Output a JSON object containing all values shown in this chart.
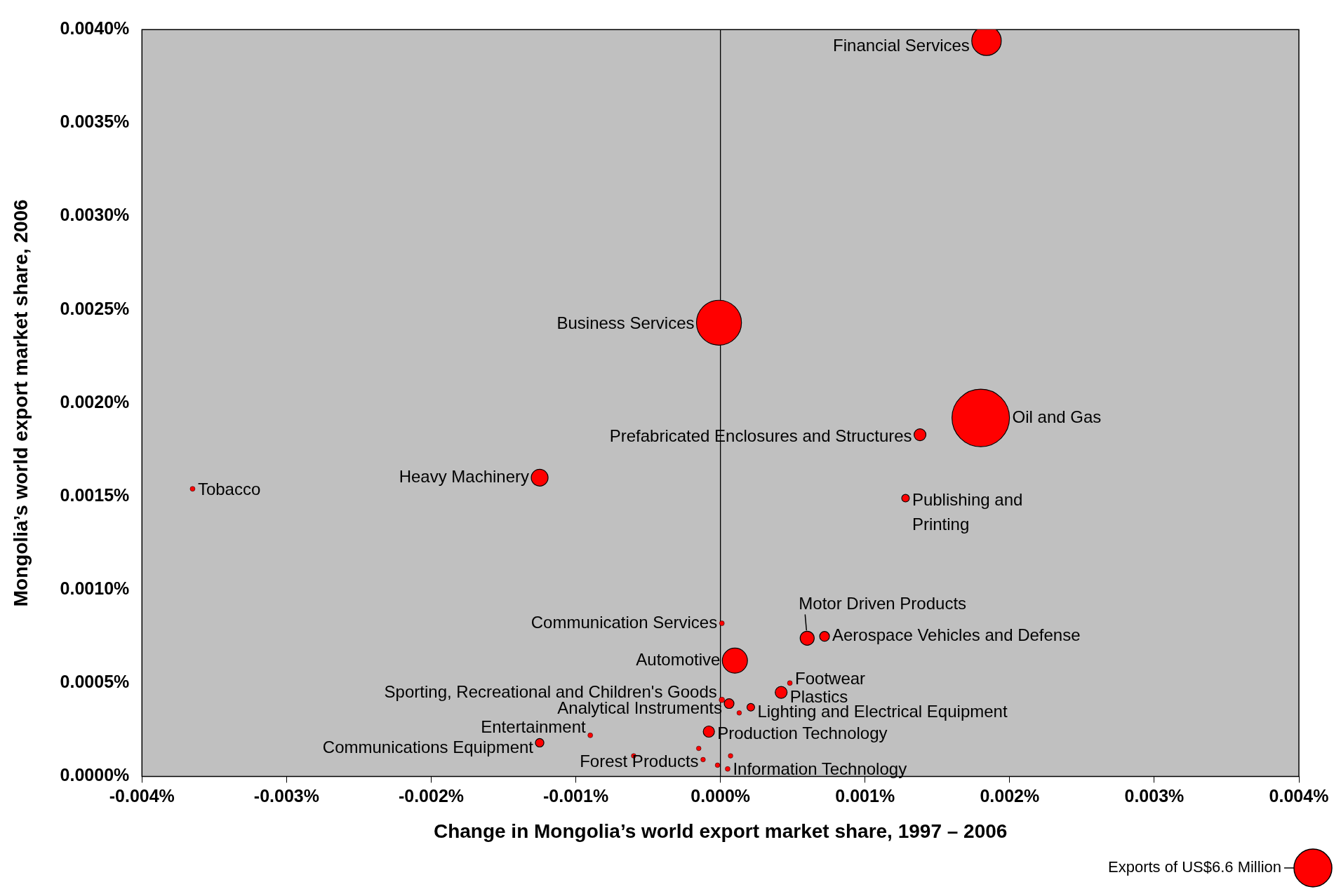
{
  "chart_data": {
    "type": "bubble",
    "xlabel": "Change in Mongolia’s world export market share, 1997 – 2006",
    "ylabel": "Mongolia’s world export market share, 2006",
    "x": [
      0.00184,
      -1e-05,
      0.0018,
      0.00138,
      -0.00125,
      -0.00365,
      0.00128,
      0.0006,
      0.00072,
      1e-05,
      0.0001,
      0.00048,
      0.00042,
      1e-05,
      6e-05,
      0.00021,
      -8e-05,
      -0.0009,
      -0.00125,
      -0.00012,
      5e-05,
      -0.0006,
      -2e-05,
      7e-05,
      -0.00015,
      0.00013
    ],
    "values": [
      0.00394,
      0.00243,
      0.00192,
      0.00183,
      0.0016,
      0.00154,
      0.00149,
      0.00074,
      0.00075,
      0.00082,
      0.00062,
      0.0005,
      0.00045,
      0.00041,
      0.00039,
      0.00037,
      0.00024,
      0.00022,
      0.00018,
      9e-05,
      4e-05,
      0.00011,
      6e-05,
      0.00011,
      0.00015,
      0.00034
    ],
    "sizes": [
      4.0,
      9.3,
      15.2,
      0.65,
      1.3,
      0.11,
      0.27,
      0.91,
      0.44,
      0.11,
      2.9,
      0.11,
      0.65,
      0.14,
      0.44,
      0.27,
      0.58,
      0.11,
      0.33,
      0.1,
      0.11,
      0.1,
      0.1,
      0.1,
      0.1,
      0.1
    ],
    "color": "#ff0000",
    "size_legend": [
      {
        "value": 6.6,
        "label": "Exports of US$6.6 Million"
      }
    ],
    "xlim": [
      -0.004,
      0.004
    ],
    "xticks": [
      {
        "value": -0.004,
        "label": "-0.004%"
      },
      {
        "value": -0.003,
        "label": "-0.003%"
      },
      {
        "value": -0.002,
        "label": "-0.002%"
      },
      {
        "value": -0.001,
        "label": "-0.001%"
      },
      {
        "value": 0,
        "label": "0.000%"
      },
      {
        "value": 0.001,
        "label": "0.001%"
      },
      {
        "value": 0.002,
        "label": "0.002%"
      },
      {
        "value": 0.003,
        "label": "0.003%"
      },
      {
        "value": 0.004,
        "label": "0.004%"
      }
    ],
    "ylim": [
      0,
      0.004
    ],
    "yticks": [
      {
        "value": 0,
        "label": "0.0000%"
      },
      {
        "value": 0.0005,
        "label": "0.0005%"
      },
      {
        "value": 0.001,
        "label": "0.0010%"
      },
      {
        "value": 0.0015,
        "label": "0.0015%"
      },
      {
        "value": 0.002,
        "label": "0.0020%"
      },
      {
        "value": 0.0025,
        "label": "0.0025%"
      },
      {
        "value": 0.003,
        "label": "0.0030%"
      },
      {
        "value": 0.0035,
        "label": "0.0035%"
      },
      {
        "value": 0.004,
        "label": "0.0040%"
      }
    ],
    "ref_lines": [
      {
        "axis": "x",
        "value": 0,
        "color": "#000000"
      }
    ],
    "annotations": [
      {
        "text": "Financial Services",
        "x": 0.00184,
        "y": 0.00394
      },
      {
        "text": "Business Services",
        "x": -1e-05,
        "y": 0.00243
      },
      {
        "text": "Oil and Gas",
        "x": 0.0018,
        "y": 0.00192
      },
      {
        "text": "Prefabricated Enclosures and Structures",
        "x": 0.00138,
        "y": 0.00183
      },
      {
        "text": "Heavy Machinery",
        "x": -0.00125,
        "y": 0.0016
      },
      {
        "text": "Tobacco",
        "x": -0.00365,
        "y": 0.00154
      },
      {
        "text": "Publishing and Printing",
        "x": 0.00128,
        "y": 0.00149
      },
      {
        "text": "Motor Driven Products",
        "x": 0.0006,
        "y": 0.00074
      },
      {
        "text": "Aerospace Vehicles and Defense",
        "x": 0.00072,
        "y": 0.00075
      },
      {
        "text": "Communication Services",
        "x": 1e-05,
        "y": 0.00082
      },
      {
        "text": "Automotive",
        "x": 0.0001,
        "y": 0.00062
      },
      {
        "text": "Footwear",
        "x": 0.00048,
        "y": 0.0005
      },
      {
        "text": "Plastics",
        "x": 0.00042,
        "y": 0.00045
      },
      {
        "text": "Sporting, Recreational and Children's Goods",
        "x": 1e-05,
        "y": 0.00041
      },
      {
        "text": "Analytical Instruments",
        "x": 6e-05,
        "y": 0.00039
      },
      {
        "text": "Lighting and Electrical Equipment",
        "x": 0.00021,
        "y": 0.00037
      },
      {
        "text": "Production Technology",
        "x": -8e-05,
        "y": 0.00024
      },
      {
        "text": "Entertainment",
        "x": -0.0009,
        "y": 0.00022
      },
      {
        "text": "Communications Equipment",
        "x": -0.00125,
        "y": 0.00018
      },
      {
        "text": "Forest Products",
        "x": -0.00012,
        "y": 9e-05
      },
      {
        "text": "Information Technology",
        "x": 5e-05,
        "y": 4e-05
      }
    ]
  }
}
